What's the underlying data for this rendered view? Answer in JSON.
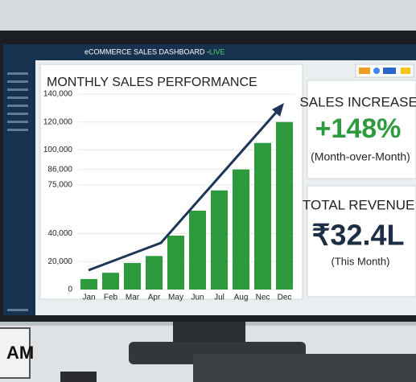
{
  "header": {
    "title": "eCOMMERCE SALES DASHBOARD - ",
    "status": "LIVE"
  },
  "chart_data": {
    "type": "bar",
    "title": "MONTHLY SALES PERFORMANCE",
    "categories": [
      "Jan",
      "Feb",
      "Mar",
      "Apr",
      "May",
      "Jun",
      "Jul",
      "Aug",
      "Nec",
      "Dec"
    ],
    "values": [
      7500,
      12000,
      19000,
      24000,
      38600,
      56500,
      71000,
      86000,
      105000,
      120000
    ],
    "color": "#2e9a3e",
    "ylim": [
      0,
      140000
    ],
    "yticks": [
      0,
      {
        "value": 20000,
        "label": "20,000"
      },
      {
        "value": 40000,
        "label": "40,000"
      },
      {
        "value": 75000,
        "label": "75,000"
      },
      {
        "value": 86000,
        "label": "86,000"
      },
      {
        "value": 100000,
        "label": "100,000"
      },
      {
        "value": 120000,
        "label": "120,000"
      },
      {
        "value": 140000,
        "label": "140,000"
      }
    ],
    "grid": true
  },
  "kpis": [
    {
      "title": "SALES INCREASE:",
      "value": "+148%",
      "note": "(Month-over-Month)"
    },
    {
      "title": "TOTAL REVENUE:",
      "value": "₹32.4L",
      "note": "(This Month)"
    }
  ],
  "sign": "AM"
}
